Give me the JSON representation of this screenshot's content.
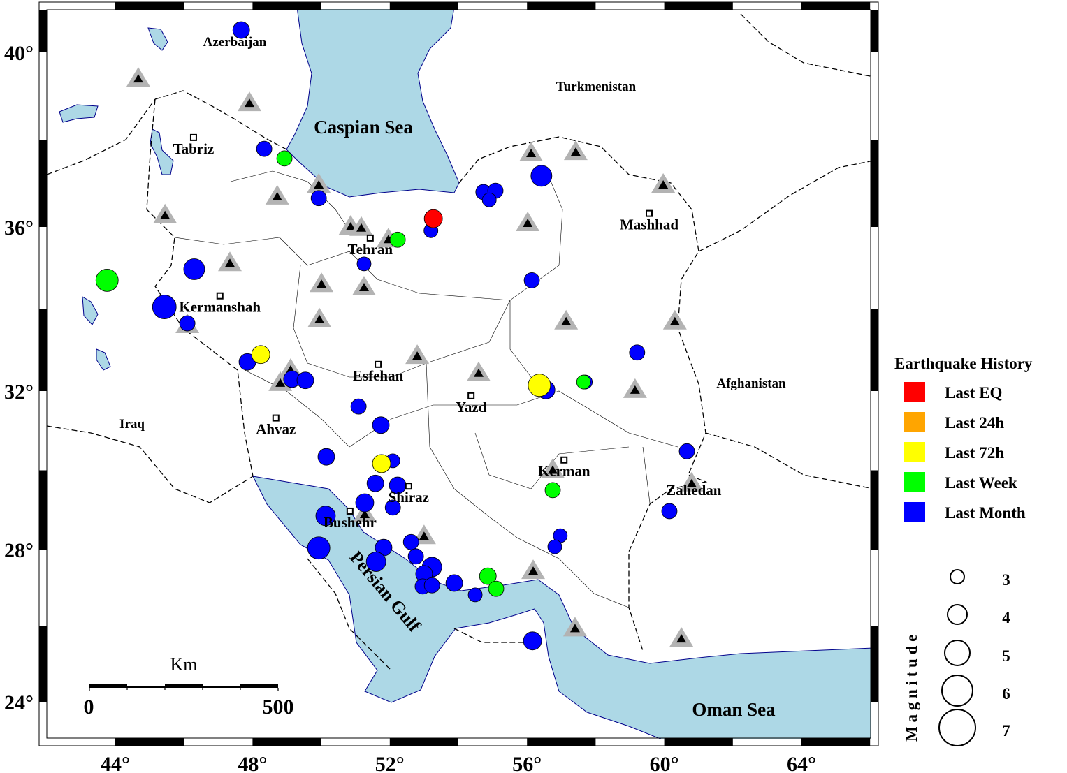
{
  "map": {
    "lon_range": [
      41.78,
      66.24
    ],
    "lat_range": [
      22.84,
      41.15
    ],
    "lon_ticks": [
      44,
      48,
      52,
      56,
      60,
      64
    ],
    "lat_ticks": [
      24,
      28,
      32,
      36,
      40
    ],
    "lon_tick_labels": [
      "44°",
      "48°",
      "52°",
      "56°",
      "60°",
      "64°"
    ],
    "lat_tick_labels": [
      "24°",
      "28°",
      "32°",
      "36°",
      "40°"
    ],
    "water_color": "#add8e6",
    "land_color": "#ffffff"
  },
  "regions": {
    "azerbaijan": "Azerbaijan",
    "turkmenistan": "Turkmenistan",
    "afghanistan": "Afghanistan",
    "iraq": "Iraq",
    "caspian": "Caspian Sea",
    "persian_gulf": "Persian Gulf",
    "oman_sea": "Oman Sea"
  },
  "cities": [
    {
      "name": "Tabriz",
      "lon": 46.28,
      "lat": 38.05,
      "marker": true
    },
    {
      "name": "Tehran",
      "lon": 51.43,
      "lat": 35.73,
      "marker": true
    },
    {
      "name": "Mashhad",
      "lon": 59.56,
      "lat": 36.31,
      "marker": true
    },
    {
      "name": "Kermanshah",
      "lon": 47.05,
      "lat": 34.32,
      "marker": true
    },
    {
      "name": "Esfehan",
      "lon": 51.66,
      "lat": 32.65,
      "marker": true
    },
    {
      "name": "Yazd",
      "lon": 54.37,
      "lat": 31.88,
      "marker": true
    },
    {
      "name": "Ahvaz",
      "lon": 48.68,
      "lat": 31.32,
      "marker": true
    },
    {
      "name": "Shiraz",
      "lon": 52.55,
      "lat": 29.6,
      "marker": true
    },
    {
      "name": "Bushehr",
      "lon": 50.84,
      "lat": 28.97,
      "marker": true
    },
    {
      "name": "Kerman",
      "lon": 57.08,
      "lat": 30.26,
      "marker": true
    },
    {
      "name": "Zahedan",
      "lon": 60.86,
      "lat": 29.78,
      "marker": false
    }
  ],
  "stations": [
    [
      44.67,
      39.39
    ],
    [
      47.91,
      38.83
    ],
    [
      48.72,
      36.69
    ],
    [
      49.93,
      36.96
    ],
    [
      45.45,
      36.26
    ],
    [
      47.34,
      35.11
    ],
    [
      50.86,
      36.0
    ],
    [
      51.17,
      35.97
    ],
    [
      51.96,
      35.69
    ],
    [
      50.01,
      34.6
    ],
    [
      51.25,
      34.52
    ],
    [
      49.95,
      33.74
    ],
    [
      46.1,
      33.6
    ],
    [
      49.11,
      32.51
    ],
    [
      48.81,
      32.19
    ],
    [
      52.8,
      32.85
    ],
    [
      54.59,
      32.43
    ],
    [
      56.12,
      37.68
    ],
    [
      57.42,
      37.71
    ],
    [
      59.97,
      36.96
    ],
    [
      56.02,
      36.08
    ],
    [
      57.14,
      33.69
    ],
    [
      60.31,
      33.69
    ],
    [
      59.15,
      32.02
    ],
    [
      56.75,
      30.0
    ],
    [
      60.8,
      29.66
    ],
    [
      51.27,
      28.88
    ],
    [
      53.0,
      28.33
    ],
    [
      56.18,
      27.43
    ],
    [
      57.4,
      25.92
    ],
    [
      60.5,
      25.65
    ]
  ],
  "earthquakes": [
    {
      "lon": 47.67,
      "lat": 40.51,
      "mag": 3.5,
      "class": "month"
    },
    {
      "lon": 48.34,
      "lat": 37.79,
      "mag": 3.25,
      "class": "month"
    },
    {
      "lon": 48.93,
      "lat": 37.57,
      "mag": 3.25,
      "class": "week"
    },
    {
      "lon": 49.93,
      "lat": 36.66,
      "mag": 3.25,
      "class": "month"
    },
    {
      "lon": 53.2,
      "lat": 35.91,
      "mag": 3.0,
      "class": "month"
    },
    {
      "lon": 53.27,
      "lat": 36.19,
      "mag": 3.75,
      "class": "last"
    },
    {
      "lon": 52.23,
      "lat": 35.69,
      "mag": 3.25,
      "class": "week"
    },
    {
      "lon": 51.25,
      "lat": 35.1,
      "mag": 3.0,
      "class": "month"
    },
    {
      "lon": 54.73,
      "lat": 36.8,
      "mag": 3.25,
      "class": "month"
    },
    {
      "lon": 55.08,
      "lat": 36.83,
      "mag": 3.25,
      "class": "month"
    },
    {
      "lon": 54.9,
      "lat": 36.62,
      "mag": 3.0,
      "class": "month"
    },
    {
      "lon": 56.42,
      "lat": 37.17,
      "mag": 4.25,
      "class": "month"
    },
    {
      "lon": 56.14,
      "lat": 34.7,
      "mag": 3.25,
      "class": "month"
    },
    {
      "lon": 43.76,
      "lat": 34.7,
      "mag": 4.5,
      "class": "week"
    },
    {
      "lon": 46.3,
      "lat": 34.97,
      "mag": 4.25,
      "class": "month"
    },
    {
      "lon": 45.43,
      "lat": 34.05,
      "mag": 4.75,
      "class": "month"
    },
    {
      "lon": 46.1,
      "lat": 33.65,
      "mag": 3.25,
      "class": "month"
    },
    {
      "lon": 47.85,
      "lat": 32.71,
      "mag": 3.5,
      "class": "month"
    },
    {
      "lon": 48.24,
      "lat": 32.89,
      "mag": 3.75,
      "class": "72h"
    },
    {
      "lon": 49.15,
      "lat": 32.29,
      "mag": 3.5,
      "class": "month"
    },
    {
      "lon": 49.54,
      "lat": 32.26,
      "mag": 3.5,
      "class": "month"
    },
    {
      "lon": 51.09,
      "lat": 31.61,
      "mag": 3.25,
      "class": "month"
    },
    {
      "lon": 51.74,
      "lat": 31.14,
      "mag": 3.5,
      "class": "month"
    },
    {
      "lon": 50.15,
      "lat": 30.34,
      "mag": 3.5,
      "class": "month"
    },
    {
      "lon": 52.09,
      "lat": 30.24,
      "mag": 3.0,
      "class": "month"
    },
    {
      "lon": 51.76,
      "lat": 30.17,
      "mag": 3.75,
      "class": "72h"
    },
    {
      "lon": 51.58,
      "lat": 29.67,
      "mag": 3.5,
      "class": "month"
    },
    {
      "lon": 52.23,
      "lat": 29.62,
      "mag": 3.5,
      "class": "month"
    },
    {
      "lon": 51.27,
      "lat": 29.18,
      "mag": 3.75,
      "class": "month"
    },
    {
      "lon": 52.09,
      "lat": 29.06,
      "mag": 3.25,
      "class": "month"
    },
    {
      "lon": 50.13,
      "lat": 28.85,
      "mag": 4.0,
      "class": "month"
    },
    {
      "lon": 49.93,
      "lat": 28.04,
      "mag": 4.5,
      "class": "month"
    },
    {
      "lon": 51.82,
      "lat": 28.05,
      "mag": 3.5,
      "class": "month"
    },
    {
      "lon": 51.6,
      "lat": 27.68,
      "mag": 4.0,
      "class": "month"
    },
    {
      "lon": 52.62,
      "lat": 28.19,
      "mag": 3.25,
      "class": "month"
    },
    {
      "lon": 52.76,
      "lat": 27.82,
      "mag": 3.25,
      "class": "month"
    },
    {
      "lon": 53.23,
      "lat": 27.54,
      "mag": 4.0,
      "class": "month"
    },
    {
      "lon": 53.0,
      "lat": 27.36,
      "mag": 3.5,
      "class": "month"
    },
    {
      "lon": 52.96,
      "lat": 27.03,
      "mag": 3.25,
      "class": "month"
    },
    {
      "lon": 53.23,
      "lat": 27.06,
      "mag": 3.25,
      "class": "month"
    },
    {
      "lon": 53.88,
      "lat": 27.12,
      "mag": 3.5,
      "class": "month"
    },
    {
      "lon": 54.49,
      "lat": 26.81,
      "mag": 3.0,
      "class": "month"
    },
    {
      "lon": 54.86,
      "lat": 27.3,
      "mag": 3.5,
      "class": "week"
    },
    {
      "lon": 55.1,
      "lat": 26.97,
      "mag": 3.25,
      "class": "week"
    },
    {
      "lon": 56.16,
      "lat": 25.6,
      "mag": 3.75,
      "class": "month"
    },
    {
      "lon": 56.55,
      "lat": 32.03,
      "mag": 3.75,
      "class": "month"
    },
    {
      "lon": 56.36,
      "lat": 32.14,
      "mag": 4.5,
      "class": "72h"
    },
    {
      "lon": 57.7,
      "lat": 32.22,
      "mag": 3.0,
      "class": "month"
    },
    {
      "lon": 57.65,
      "lat": 32.22,
      "mag": 3.0,
      "class": "week"
    },
    {
      "lon": 59.21,
      "lat": 32.94,
      "mag": 3.25,
      "class": "month"
    },
    {
      "lon": 60.66,
      "lat": 30.48,
      "mag": 3.25,
      "class": "month"
    },
    {
      "lon": 60.15,
      "lat": 28.97,
      "mag": 3.25,
      "class": "month"
    },
    {
      "lon": 56.75,
      "lat": 29.5,
      "mag": 3.25,
      "class": "week"
    },
    {
      "lon": 56.97,
      "lat": 28.35,
      "mag": 3.0,
      "class": "month"
    },
    {
      "lon": 56.81,
      "lat": 28.07,
      "mag": 3.0,
      "class": "month"
    }
  ],
  "legend": {
    "title": "Earthquake History",
    "items": [
      {
        "key": "last",
        "label": "Last EQ",
        "color": "#ff0000"
      },
      {
        "key": "24h",
        "label": "Last 24h",
        "color": "#ffa500"
      },
      {
        "key": "72h",
        "label": "Last 72h",
        "color": "#ffff00"
      },
      {
        "key": "week",
        "label": "Last Week",
        "color": "#00ff00"
      },
      {
        "key": "month",
        "label": "Last Month",
        "color": "#0000ff"
      }
    ],
    "magnitude_title": "M a g n i t u d e",
    "magnitudes": [
      {
        "value": 3,
        "label": "3"
      },
      {
        "value": 4,
        "label": "4"
      },
      {
        "value": 5,
        "label": "5"
      },
      {
        "value": 6,
        "label": "6"
      },
      {
        "value": 7,
        "label": "7"
      }
    ]
  },
  "scale_bar": {
    "unit": "Km",
    "start_label": "0",
    "end_label": "500",
    "length_km": 500
  }
}
